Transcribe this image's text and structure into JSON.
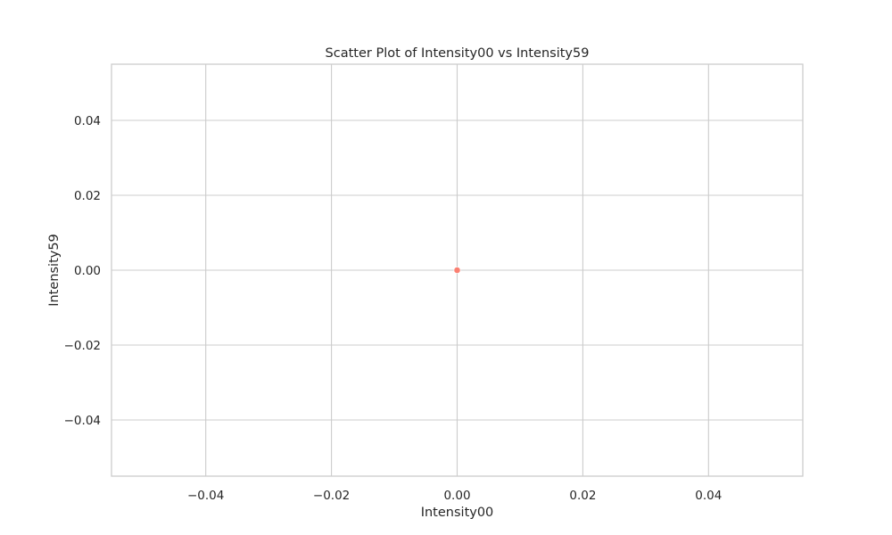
{
  "chart_data": {
    "type": "scatter",
    "title": "Scatter Plot of Intensity00 vs Intensity59",
    "xlabel": "Intensity00",
    "ylabel": "Intensity59",
    "xlim": [
      -0.055,
      0.055
    ],
    "ylim": [
      -0.055,
      0.055
    ],
    "xticks": [
      -0.04,
      -0.02,
      0.0,
      0.02,
      0.04
    ],
    "yticks": [
      -0.04,
      -0.02,
      0.0,
      0.02,
      0.04
    ],
    "xtick_labels": [
      "−0.04",
      "−0.02",
      "0.00",
      "0.02",
      "0.04"
    ],
    "ytick_labels": [
      "−0.04",
      "−0.02",
      "0.00",
      "0.02",
      "0.04"
    ],
    "grid": true,
    "points": [
      {
        "x": 0.0,
        "y": 0.0
      }
    ],
    "colors": {
      "point": "#fa8072",
      "grid": "#cccccc",
      "frame": "#cccccc",
      "text": "#262626"
    }
  }
}
